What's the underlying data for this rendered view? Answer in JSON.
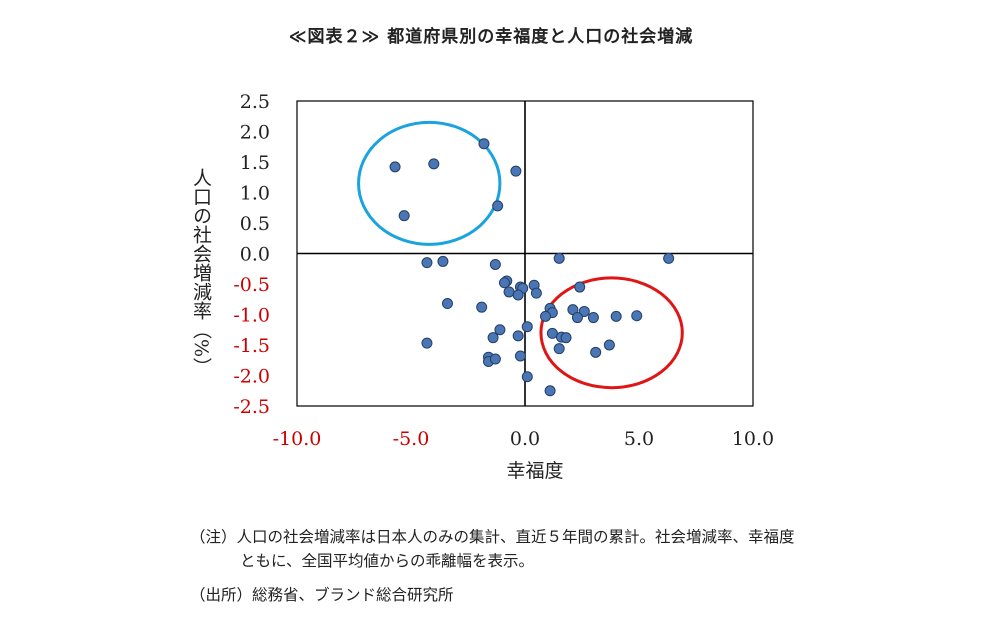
{
  "title": "≪図表２≫ 都道府県別の幸福度と人口の社会増減",
  "notes": {
    "note_line1": "（注）人口の社会増減率は日本人のみの集計、直近５年間の累計。社会増減率、幸福度",
    "note_line2": "ともに、全国平均値からの乖離幅を表示。",
    "source": "（出所）総務省、ブランド総合研究所"
  },
  "colors": {
    "point_fill": "#4a76b5",
    "point_stroke": "#243f66",
    "circle_blue": "#1aa3dd",
    "circle_red": "#e01616",
    "negative_tick": "#cc0000",
    "axis": "#000000"
  },
  "chart_data": {
    "type": "scatter",
    "xlabel": "幸福度",
    "ylabel": "人口の社会増減率（%）",
    "xlim": [
      -10,
      10
    ],
    "ylim": [
      -2.5,
      2.5
    ],
    "x_ticks": [
      "-10.0",
      "-5.0",
      "0.0",
      "5.0",
      "10.0"
    ],
    "y_ticks": [
      "2.5",
      "2.0",
      "1.5",
      "1.0",
      "0.5",
      "0.0",
      "-0.5",
      "-1.0",
      "-1.5",
      "-2.0",
      "-2.5"
    ],
    "grid": false,
    "legend": "none",
    "annotations": [
      {
        "shape": "ellipse",
        "color": "blue",
        "center": [
          -4.2,
          1.15
        ],
        "radius": [
          3.1,
          1.0
        ]
      },
      {
        "shape": "ellipse",
        "color": "red",
        "center": [
          3.8,
          -1.3
        ],
        "radius": [
          3.1,
          0.9
        ]
      }
    ],
    "points": [
      [
        -5.7,
        1.42
      ],
      [
        -4.0,
        1.47
      ],
      [
        -1.8,
        1.8
      ],
      [
        -0.4,
        1.35
      ],
      [
        -1.2,
        0.78
      ],
      [
        -5.3,
        0.62
      ],
      [
        -4.3,
        -0.15
      ],
      [
        -3.6,
        -0.13
      ],
      [
        -1.3,
        -0.18
      ],
      [
        1.5,
        -0.08
      ],
      [
        6.3,
        -0.08
      ],
      [
        -0.8,
        -0.45
      ],
      [
        -0.9,
        -0.48
      ],
      [
        -0.7,
        -0.63
      ],
      [
        -0.2,
        -0.55
      ],
      [
        -0.1,
        -0.57
      ],
      [
        0.4,
        -0.52
      ],
      [
        -0.3,
        -0.68
      ],
      [
        0.5,
        -0.65
      ],
      [
        2.4,
        -0.55
      ],
      [
        -3.4,
        -0.82
      ],
      [
        -1.9,
        -0.88
      ],
      [
        1.1,
        -0.9
      ],
      [
        1.2,
        -0.97
      ],
      [
        2.1,
        -0.92
      ],
      [
        2.6,
        -0.95
      ],
      [
        0.9,
        -1.03
      ],
      [
        2.3,
        -1.05
      ],
      [
        3.0,
        -1.05
      ],
      [
        4.0,
        -1.03
      ],
      [
        4.9,
        -1.02
      ],
      [
        0.1,
        -1.2
      ],
      [
        -1.1,
        -1.25
      ],
      [
        -0.3,
        -1.35
      ],
      [
        -1.4,
        -1.38
      ],
      [
        1.2,
        -1.31
      ],
      [
        1.6,
        -1.37
      ],
      [
        1.8,
        -1.38
      ],
      [
        1.5,
        -1.56
      ],
      [
        3.7,
        -1.5
      ],
      [
        3.1,
        -1.62
      ],
      [
        -4.3,
        -1.47
      ],
      [
        -1.6,
        -1.7
      ],
      [
        -1.6,
        -1.77
      ],
      [
        -1.3,
        -1.73
      ],
      [
        -0.2,
        -1.68
      ],
      [
        0.1,
        -2.02
      ],
      [
        1.1,
        -2.25
      ]
    ]
  }
}
